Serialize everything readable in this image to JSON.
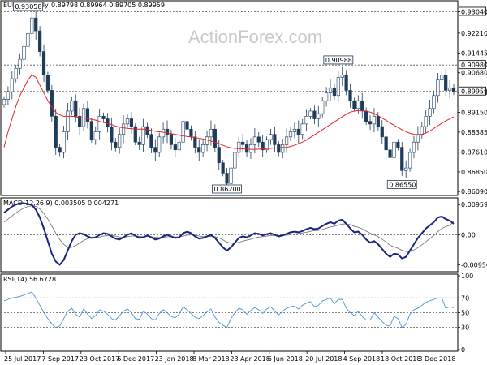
{
  "chart_data": {
    "type": "candlestick",
    "symbol_header": "EURGBP,Daily",
    "ohlc_header": "0.89798 0.89964 0.89705 0.89959",
    "watermark": "ActionForex.com",
    "price_panel": {
      "y_range": [
        0.86,
        0.934
      ],
      "y_ticks": [
        "0.93040",
        "0.92210",
        "0.91445",
        "0.90680",
        "0.89915",
        "0.89150",
        "0.88385",
        "0.87610",
        "0.86850",
        "0.86090"
      ],
      "right_price_labels": [
        "0.93040",
        "0.90980",
        "0.89959"
      ],
      "hlines": [
        0.9304,
        0.9098,
        0.89959
      ],
      "annotations": [
        {
          "label": "0.93058",
          "value": 0.93058,
          "index": 6
        },
        {
          "label": "0.86200",
          "value": 0.862,
          "index": 56
        },
        {
          "label": "0.90988",
          "value": 0.90988,
          "index": 84
        },
        {
          "label": "0.86550",
          "value": 0.8655,
          "index": 100
        }
      ],
      "close": [
        0.8965,
        0.8995,
        0.9045,
        0.9085,
        0.912,
        0.917,
        0.922,
        0.928,
        0.923,
        0.915,
        0.906,
        0.9,
        0.89,
        0.878,
        0.876,
        0.884,
        0.892,
        0.896,
        0.89,
        0.886,
        0.893,
        0.888,
        0.881,
        0.884,
        0.89,
        0.889,
        0.886,
        0.88,
        0.878,
        0.883,
        0.887,
        0.889,
        0.886,
        0.88,
        0.879,
        0.886,
        0.883,
        0.878,
        0.876,
        0.882,
        0.885,
        0.883,
        0.879,
        0.877,
        0.88,
        0.888,
        0.885,
        0.882,
        0.878,
        0.876,
        0.879,
        0.882,
        0.885,
        0.878,
        0.872,
        0.868,
        0.864,
        0.87,
        0.876,
        0.88,
        0.879,
        0.876,
        0.879,
        0.882,
        0.88,
        0.877,
        0.881,
        0.883,
        0.879,
        0.876,
        0.879,
        0.882,
        0.884,
        0.885,
        0.883,
        0.887,
        0.89,
        0.892,
        0.889,
        0.891,
        0.896,
        0.899,
        0.901,
        0.898,
        0.905,
        0.906,
        0.9,
        0.896,
        0.893,
        0.896,
        0.892,
        0.888,
        0.887,
        0.89,
        0.886,
        0.882,
        0.877,
        0.874,
        0.88,
        0.878,
        0.869,
        0.87,
        0.876,
        0.88,
        0.883,
        0.886,
        0.89,
        0.893,
        0.898,
        0.904,
        0.906,
        0.9,
        0.901,
        0.8996
      ],
      "ma": [
        0.878,
        0.884,
        0.889,
        0.894,
        0.898,
        0.901,
        0.904,
        0.906,
        0.905,
        0.902,
        0.899,
        0.896,
        0.8935,
        0.8915,
        0.8905,
        0.89,
        0.89,
        0.89,
        0.8898,
        0.8895,
        0.8893,
        0.889,
        0.8888,
        0.8885,
        0.888,
        0.8876,
        0.8872,
        0.8868,
        0.8862,
        0.8858,
        0.8855,
        0.8853,
        0.8852,
        0.885,
        0.885,
        0.885,
        0.8848,
        0.8845,
        0.8842,
        0.884,
        0.8838,
        0.8836,
        0.8833,
        0.883,
        0.8827,
        0.8824,
        0.8822,
        0.882,
        0.8817,
        0.8815,
        0.8812,
        0.8808,
        0.8804,
        0.88,
        0.8794,
        0.8788,
        0.8782,
        0.8778,
        0.8776,
        0.8775,
        0.8774,
        0.8773,
        0.8772,
        0.8772,
        0.8773,
        0.8774,
        0.8775,
        0.8776,
        0.8777,
        0.8778,
        0.8779,
        0.878,
        0.8783,
        0.8788,
        0.8794,
        0.88,
        0.8808,
        0.8818,
        0.8828,
        0.8838,
        0.8848,
        0.8858,
        0.8868,
        0.8878,
        0.8888,
        0.8898,
        0.8908,
        0.8916,
        0.892,
        0.8922,
        0.8922,
        0.892,
        0.8916,
        0.891,
        0.8902,
        0.8893,
        0.8884,
        0.8874,
        0.8865,
        0.8857,
        0.8848,
        0.884,
        0.8834,
        0.883,
        0.8828,
        0.883,
        0.8835,
        0.8843,
        0.8853,
        0.8863,
        0.8873,
        0.8882,
        0.889,
        0.8898
      ]
    },
    "macd_panel": {
      "header": "MACD(12,26,9) 0.003505 0.004271",
      "y_range": [
        -0.0112,
        0.0112
      ],
      "y_ticks": [
        "0.009593",
        "0.00",
        "-0.009562"
      ],
      "macd": [
        0.007,
        0.008,
        0.009,
        0.0096,
        0.01,
        0.01,
        0.0098,
        0.0095,
        0.008,
        0.0055,
        0.002,
        -0.002,
        -0.006,
        -0.0085,
        -0.0095,
        -0.008,
        -0.005,
        -0.002,
        0.0,
        0.0005,
        0.0002,
        -0.0005,
        -0.001,
        -0.0008,
        0.0,
        0.0005,
        0.0003,
        -0.0005,
        -0.0012,
        -0.0015,
        -0.0008,
        0.0,
        0.0005,
        -0.0003,
        -0.001,
        -0.0008,
        -0.0002,
        -0.0008,
        -0.0015,
        -0.0012,
        -0.0005,
        0.0,
        -0.0005,
        -0.001,
        -0.0008,
        0.0005,
        0.001,
        0.0005,
        -0.0005,
        -0.0012,
        -0.001,
        -0.0005,
        0.0,
        -0.001,
        -0.0025,
        -0.004,
        -0.005,
        -0.004,
        -0.0025,
        -0.001,
        -0.0005,
        -0.0008,
        -0.0002,
        0.0005,
        0.0003,
        -0.0002,
        0.0002,
        0.0005,
        0.0,
        -0.0005,
        -0.0002,
        0.0003,
        0.0008,
        0.001,
        0.0008,
        0.0012,
        0.0018,
        0.0022,
        0.0018,
        0.002,
        0.0028,
        0.0035,
        0.004,
        0.0035,
        0.0045,
        0.0048,
        0.0035,
        0.002,
        0.0008,
        0.001,
        0.0,
        -0.0015,
        -0.0025,
        -0.002,
        -0.003,
        -0.0045,
        -0.006,
        -0.007,
        -0.006,
        -0.0062,
        -0.0075,
        -0.007,
        -0.005,
        -0.003,
        -0.001,
        0.0005,
        0.002,
        0.003,
        0.004,
        0.0055,
        0.0058,
        0.005,
        0.0045,
        0.0035
      ],
      "signal": [
        0.004,
        0.005,
        0.006,
        0.007,
        0.0078,
        0.0085,
        0.009,
        0.0092,
        0.009,
        0.0082,
        0.0068,
        0.005,
        0.0028,
        0.0005,
        -0.0015,
        -0.003,
        -0.004,
        -0.004,
        -0.0034,
        -0.0026,
        -0.0018,
        -0.0012,
        -0.001,
        -0.0009,
        -0.0007,
        -0.0004,
        -0.0002,
        -0.0002,
        -0.0004,
        -0.0007,
        -0.0008,
        -0.0006,
        -0.0004,
        -0.0004,
        -0.0005,
        -0.0006,
        -0.0005,
        -0.0006,
        -0.0008,
        -0.0009,
        -0.0008,
        -0.0006,
        -0.0006,
        -0.0007,
        -0.0007,
        -0.0004,
        -0.0001,
        0.0,
        -0.0001,
        -0.0004,
        -0.0006,
        -0.0006,
        -0.0005,
        -0.0006,
        -0.001,
        -0.0016,
        -0.0023,
        -0.0027,
        -0.0027,
        -0.0024,
        -0.002,
        -0.0017,
        -0.0014,
        -0.001,
        -0.0007,
        -0.0006,
        -0.0004,
        -0.0002,
        -0.0002,
        -0.0002,
        -0.0002,
        -0.0001,
        0.0001,
        0.0003,
        0.0004,
        0.0006,
        0.0008,
        0.0011,
        0.0013,
        0.0014,
        0.0017,
        0.0021,
        0.0025,
        0.0027,
        0.0031,
        0.0034,
        0.0035,
        0.0032,
        0.0027,
        0.0024,
        0.0019,
        0.0012,
        0.0005,
        0.0,
        -0.0006,
        -0.0014,
        -0.0023,
        -0.0033,
        -0.0038,
        -0.0043,
        -0.0049,
        -0.0053,
        -0.0053,
        -0.0048,
        -0.0041,
        -0.0032,
        -0.0022,
        -0.0012,
        -0.0002,
        0.001,
        0.002,
        0.0026,
        0.003,
        0.0042
      ]
    },
    "rsi_panel": {
      "header": "RSI(14) 56.6728",
      "y_range": [
        0,
        100
      ],
      "y_ticks": [
        "100",
        "70",
        "50",
        "30",
        "0"
      ],
      "levels": [
        70,
        50,
        30
      ],
      "values": [
        66,
        68,
        70,
        71,
        72,
        74,
        76,
        78,
        70,
        60,
        50,
        42,
        35,
        30,
        32,
        42,
        52,
        56,
        48,
        44,
        55,
        48,
        42,
        46,
        54,
        52,
        48,
        42,
        40,
        46,
        52,
        55,
        50,
        42,
        41,
        52,
        48,
        42,
        40,
        49,
        54,
        50,
        45,
        43,
        48,
        58,
        54,
        49,
        44,
        42,
        46,
        51,
        55,
        44,
        37,
        33,
        30,
        42,
        50,
        56,
        54,
        48,
        53,
        57,
        54,
        49,
        55,
        58,
        52,
        47,
        52,
        56,
        58,
        59,
        55,
        60,
        63,
        65,
        58,
        60,
        66,
        68,
        70,
        62,
        68,
        68,
        56,
        50,
        46,
        52,
        45,
        40,
        40,
        50,
        44,
        38,
        33,
        32,
        45,
        42,
        30,
        34,
        48,
        54,
        56,
        60,
        64,
        66,
        68,
        70,
        70,
        56,
        58,
        56.67
      ]
    },
    "x_tick_labels": [
      "25 Jul 2017",
      "7 Sep 2017",
      "23 Oct 2017",
      "6 Dec 2017",
      "23 Jan 2018",
      "8 Mar 2018",
      "23 Apr 2018",
      "6 Jun 2018",
      "20 Jul 2018",
      "4 Sep 2018",
      "18 Oct 2018",
      "3 Dec 2018"
    ],
    "colors": {
      "candle": "#1e3c5a",
      "ma": "#e2242a",
      "macd": "#1a237e",
      "signal": "#7a7a7a",
      "rsi": "#4a90d9",
      "grid": "#d0d0d0",
      "dotted": "#555555"
    }
  }
}
